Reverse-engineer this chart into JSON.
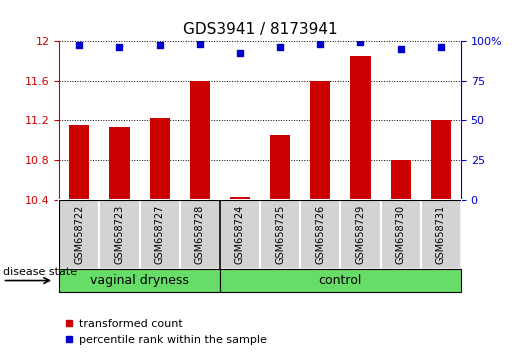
{
  "title": "GDS3941 / 8173941",
  "samples": [
    "GSM658722",
    "GSM658723",
    "GSM658727",
    "GSM658728",
    "GSM658724",
    "GSM658725",
    "GSM658726",
    "GSM658729",
    "GSM658730",
    "GSM658731"
  ],
  "bar_values": [
    11.15,
    11.13,
    11.22,
    11.6,
    10.43,
    11.05,
    11.6,
    11.85,
    10.8,
    11.2
  ],
  "percentile_values": [
    97,
    96,
    97,
    98,
    92,
    96,
    98,
    99,
    95,
    96
  ],
  "group_boundary": 3.5,
  "group1_label": "vaginal dryness",
  "group2_label": "control",
  "ylim_left": [
    10.4,
    12.0
  ],
  "ylim_right": [
    0,
    100
  ],
  "yticks_left": [
    10.4,
    10.8,
    11.2,
    11.6,
    12.0
  ],
  "ytick_labels_left": [
    "10.4",
    "10.8",
    "11.2",
    "11.6",
    "12"
  ],
  "yticks_right": [
    0,
    25,
    50,
    75,
    100
  ],
  "ytick_labels_right": [
    "0",
    "25",
    "50",
    "75",
    "100%"
  ],
  "bar_color": "#CC0000",
  "dot_color": "#0000CC",
  "bar_width": 0.5,
  "dot_marker": "s",
  "dot_size": 25,
  "disease_state_label": "disease state",
  "legend_bar_label": "transformed count",
  "legend_dot_label": "percentile rank within the sample",
  "grid_style": "dotted",
  "grid_color": "#000000",
  "tick_color_left": "#CC0000",
  "tick_color_right": "#0000CC",
  "bg_color": "#ffffff",
  "sample_box_color": "#D3D3D3",
  "group_box_color": "#66DD66",
  "tick_fontsize": 8,
  "title_fontsize": 11,
  "sample_fontsize": 7,
  "group_fontsize": 9,
  "legend_fontsize": 8
}
